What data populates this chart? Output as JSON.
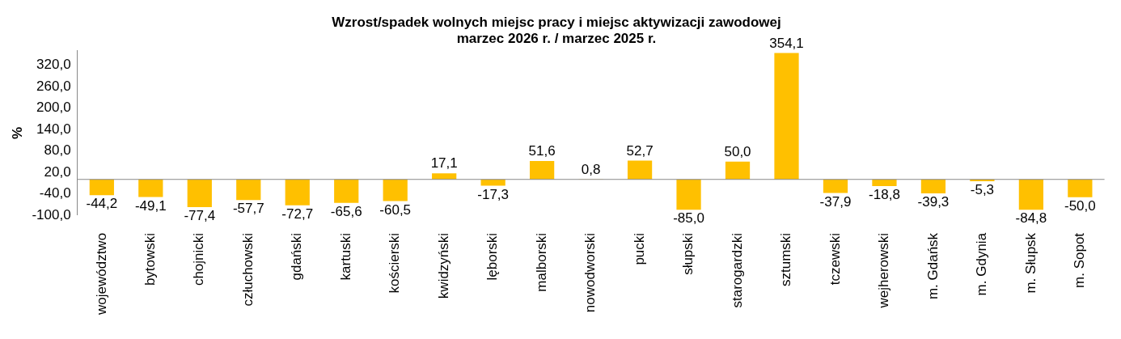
{
  "chart_data": {
    "type": "bar",
    "title": [
      "Wzrost/spadek wolnych miejsc pracy i miejsc aktywizacji zawodowej",
      "marzec 2026 r. / marzec 2025 r."
    ],
    "ylabel": "%",
    "categories": [
      "województwo",
      "bytowski",
      "chojnicki",
      "człuchowski",
      "gdański",
      "kartuski",
      "kościerski",
      "kwidzyński",
      "lęborski",
      "malborski",
      "nowodworski",
      "pucki",
      "słupski",
      "starogardzki",
      "sztumski",
      "tczewski",
      "wejherowski",
      "m. Gdańsk",
      "m. Gdynia",
      "m. Słupsk",
      "m. Sopot"
    ],
    "values": [
      -44.2,
      -49.1,
      -77.4,
      -57.7,
      -72.7,
      -65.6,
      -60.5,
      17.1,
      -17.3,
      51.6,
      0.8,
      52.7,
      -85.0,
      50.0,
      354.1,
      -37.9,
      -18.8,
      -39.3,
      -5.3,
      -84.8,
      -50.0
    ],
    "value_labels": [
      "-44,2",
      "-49,1",
      "-77,4",
      "-57,7",
      "-72,7",
      "-65,6",
      "-60,5",
      "17,1",
      "-17,3",
      "51,6",
      "0,8",
      "52,7",
      "-85,0",
      "50,0",
      "354,1",
      "-37,9",
      "-18,8",
      "-39,3",
      "-5,3",
      "-84,8",
      "-50,0"
    ],
    "color": "#ffc000",
    "ylim": [
      -100,
      360
    ],
    "yticks": [
      {
        "value": -100,
        "label": "-100,0"
      },
      {
        "value": -40,
        "label": "-40,0"
      },
      {
        "value": 20,
        "label": "20,0"
      },
      {
        "value": 80,
        "label": "80,0"
      },
      {
        "value": 140,
        "label": "140,0"
      },
      {
        "value": 200,
        "label": "200,0"
      },
      {
        "value": 260,
        "label": "260,0"
      },
      {
        "value": 320,
        "label": "320,0"
      }
    ],
    "grid": false,
    "legend": false
  }
}
